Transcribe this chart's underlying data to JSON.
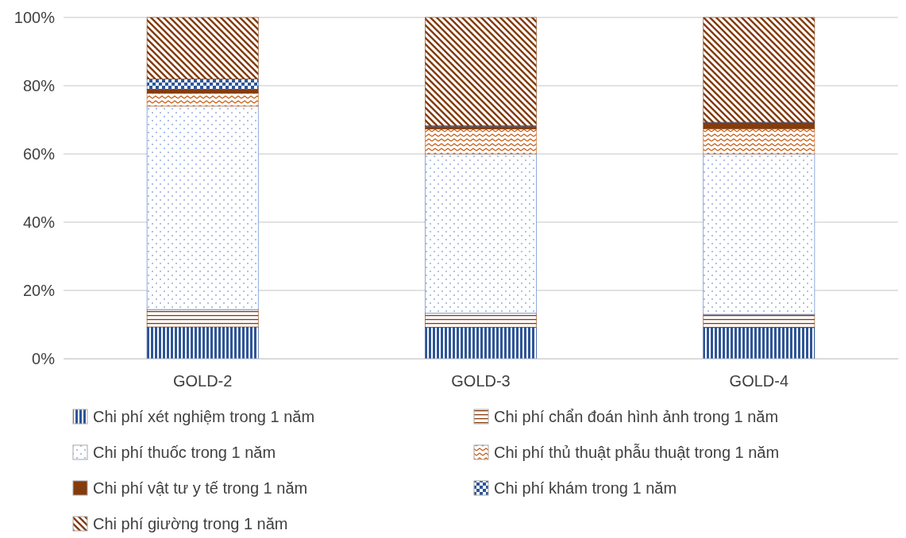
{
  "chart_data": {
    "type": "bar",
    "stacked": true,
    "categories": [
      "GOLD-2",
      "GOLD-3",
      "GOLD-4"
    ],
    "series": [
      {
        "name": "Chi phí xét nghiệm trong 1 năm",
        "color": "#2f5597",
        "values": [
          9.3,
          9.2,
          9.1
        ]
      },
      {
        "name": "Chi phí chẩn đoán hình ảnh trong 1 năm",
        "color": "#843c0c",
        "values": [
          5.1,
          4.1,
          3.9
        ]
      },
      {
        "name": "Chi phí thuốc trong 1 năm",
        "color": "#4472c4",
        "values": [
          59.6,
          46.7,
          47.0
        ]
      },
      {
        "name": "Chi phí thủ thuật phẫu thuật trong 1 năm",
        "color": "#c55a11",
        "values": [
          3.8,
          7.3,
          7.4
        ]
      },
      {
        "name": "Chi phí vật tư y tế trong 1 năm",
        "color": "#843c0c",
        "values": [
          1.2,
          0.8,
          1.7
        ]
      },
      {
        "name": "Chi phí khám trong 1 năm",
        "color": "#2f5597",
        "values": [
          3.0,
          0.2,
          0.2
        ]
      },
      {
        "name": "Chi phí giường trong 1 năm",
        "color": "#843c0c",
        "values": [
          18.0,
          31.7,
          30.7
        ]
      }
    ],
    "ylim": [
      0,
      100
    ],
    "yticks": [
      {
        "value": 0,
        "label": "0%"
      },
      {
        "value": 20,
        "label": "20%"
      },
      {
        "value": 40,
        "label": "40%"
      },
      {
        "value": 60,
        "label": "60%"
      },
      {
        "value": 80,
        "label": "80%"
      },
      {
        "value": 100,
        "label": "100%"
      }
    ],
    "grid": "y",
    "legend": "bottom"
  }
}
